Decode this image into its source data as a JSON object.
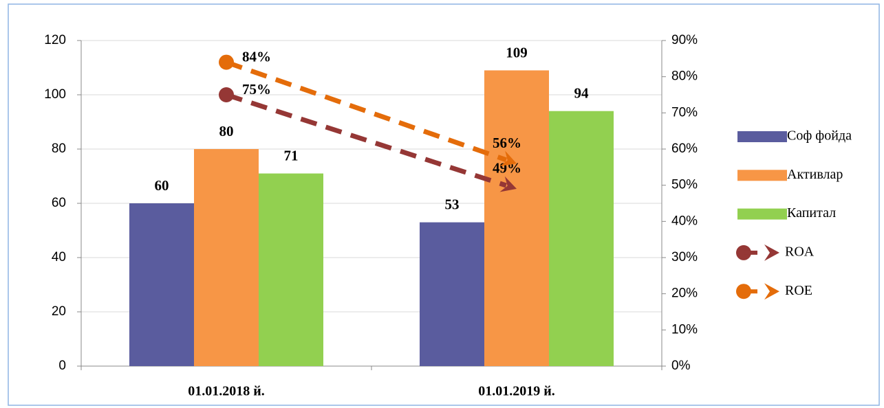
{
  "chart_data": {
    "type": "bar",
    "categories": [
      "01.01.2018 й.",
      "01.01.2019 й."
    ],
    "series": [
      {
        "name": "Соф фойда",
        "color": "#5a5c9e",
        "values": [
          60,
          53
        ]
      },
      {
        "name": "Активлар",
        "color": "#f79646",
        "values": [
          80,
          109
        ]
      },
      {
        "name": "Капитал",
        "color": "#92d050",
        "values": [
          71,
          94
        ]
      },
      {
        "name": "ROA",
        "type": "line",
        "axis": "y2",
        "color": "#953735",
        "values": [
          75,
          49
        ],
        "value_labels": [
          "75%",
          "49%"
        ]
      },
      {
        "name": "ROE",
        "type": "line",
        "axis": "y2",
        "color": "#e46c0a",
        "values": [
          84,
          56
        ],
        "value_labels": [
          "84%",
          "56%"
        ]
      }
    ],
    "ylim": [
      0,
      120
    ],
    "yticks": [
      0,
      20,
      40,
      60,
      80,
      100,
      120
    ],
    "y2lim": [
      0,
      90
    ],
    "y2ticks": [
      {
        "value": 0,
        "label": "0%"
      },
      {
        "value": 10,
        "label": "10%"
      },
      {
        "value": 20,
        "label": "20%"
      },
      {
        "value": 30,
        "label": "30%"
      },
      {
        "value": 40,
        "label": "40%"
      },
      {
        "value": 50,
        "label": "50%"
      },
      {
        "value": 60,
        "label": "60%"
      },
      {
        "value": 70,
        "label": "70%"
      },
      {
        "value": 80,
        "label": "80%"
      },
      {
        "value": 90,
        "label": "90%"
      }
    ],
    "grid": true,
    "legend": "right"
  }
}
